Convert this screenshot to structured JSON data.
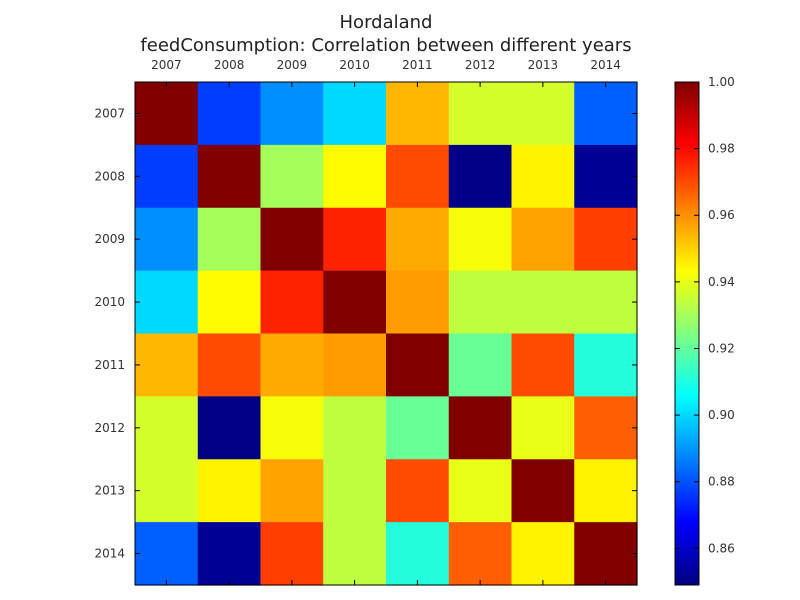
{
  "chart_data": {
    "type": "heatmap",
    "title": "Hordaland",
    "subtitle": "feedConsumption: Correlation between different years",
    "x_categories": [
      "2007",
      "2008",
      "2009",
      "2010",
      "2011",
      "2012",
      "2013",
      "2014"
    ],
    "y_categories": [
      "2007",
      "2008",
      "2009",
      "2010",
      "2011",
      "2012",
      "2013",
      "2014"
    ],
    "values": [
      [
        1.0,
        0.877,
        0.889,
        0.9,
        0.954,
        0.937,
        0.937,
        0.882
      ],
      [
        0.877,
        1.0,
        0.93,
        0.944,
        0.97,
        0.85,
        0.945,
        0.852
      ],
      [
        0.889,
        0.93,
        1.0,
        0.976,
        0.956,
        0.942,
        0.957,
        0.972
      ],
      [
        0.9,
        0.944,
        0.976,
        1.0,
        0.958,
        0.934,
        0.934,
        0.934
      ],
      [
        0.954,
        0.97,
        0.956,
        0.958,
        1.0,
        0.921,
        0.97,
        0.911
      ],
      [
        0.937,
        0.85,
        0.942,
        0.934,
        0.921,
        1.0,
        0.94,
        0.967
      ],
      [
        0.937,
        0.945,
        0.957,
        0.934,
        0.97,
        0.94,
        1.0,
        0.945
      ],
      [
        0.882,
        0.852,
        0.972,
        0.934,
        0.911,
        0.967,
        0.945,
        1.0
      ]
    ],
    "colorbar": {
      "min": 0.849,
      "max": 1.0,
      "ticks": [
        0.86,
        0.88,
        0.9,
        0.92,
        0.94,
        0.96,
        0.98,
        1.0
      ],
      "tick_labels": [
        "0.86",
        "0.88",
        "0.90",
        "0.92",
        "0.94",
        "0.96",
        "0.98",
        "1.00"
      ],
      "colormap": "jet"
    }
  }
}
